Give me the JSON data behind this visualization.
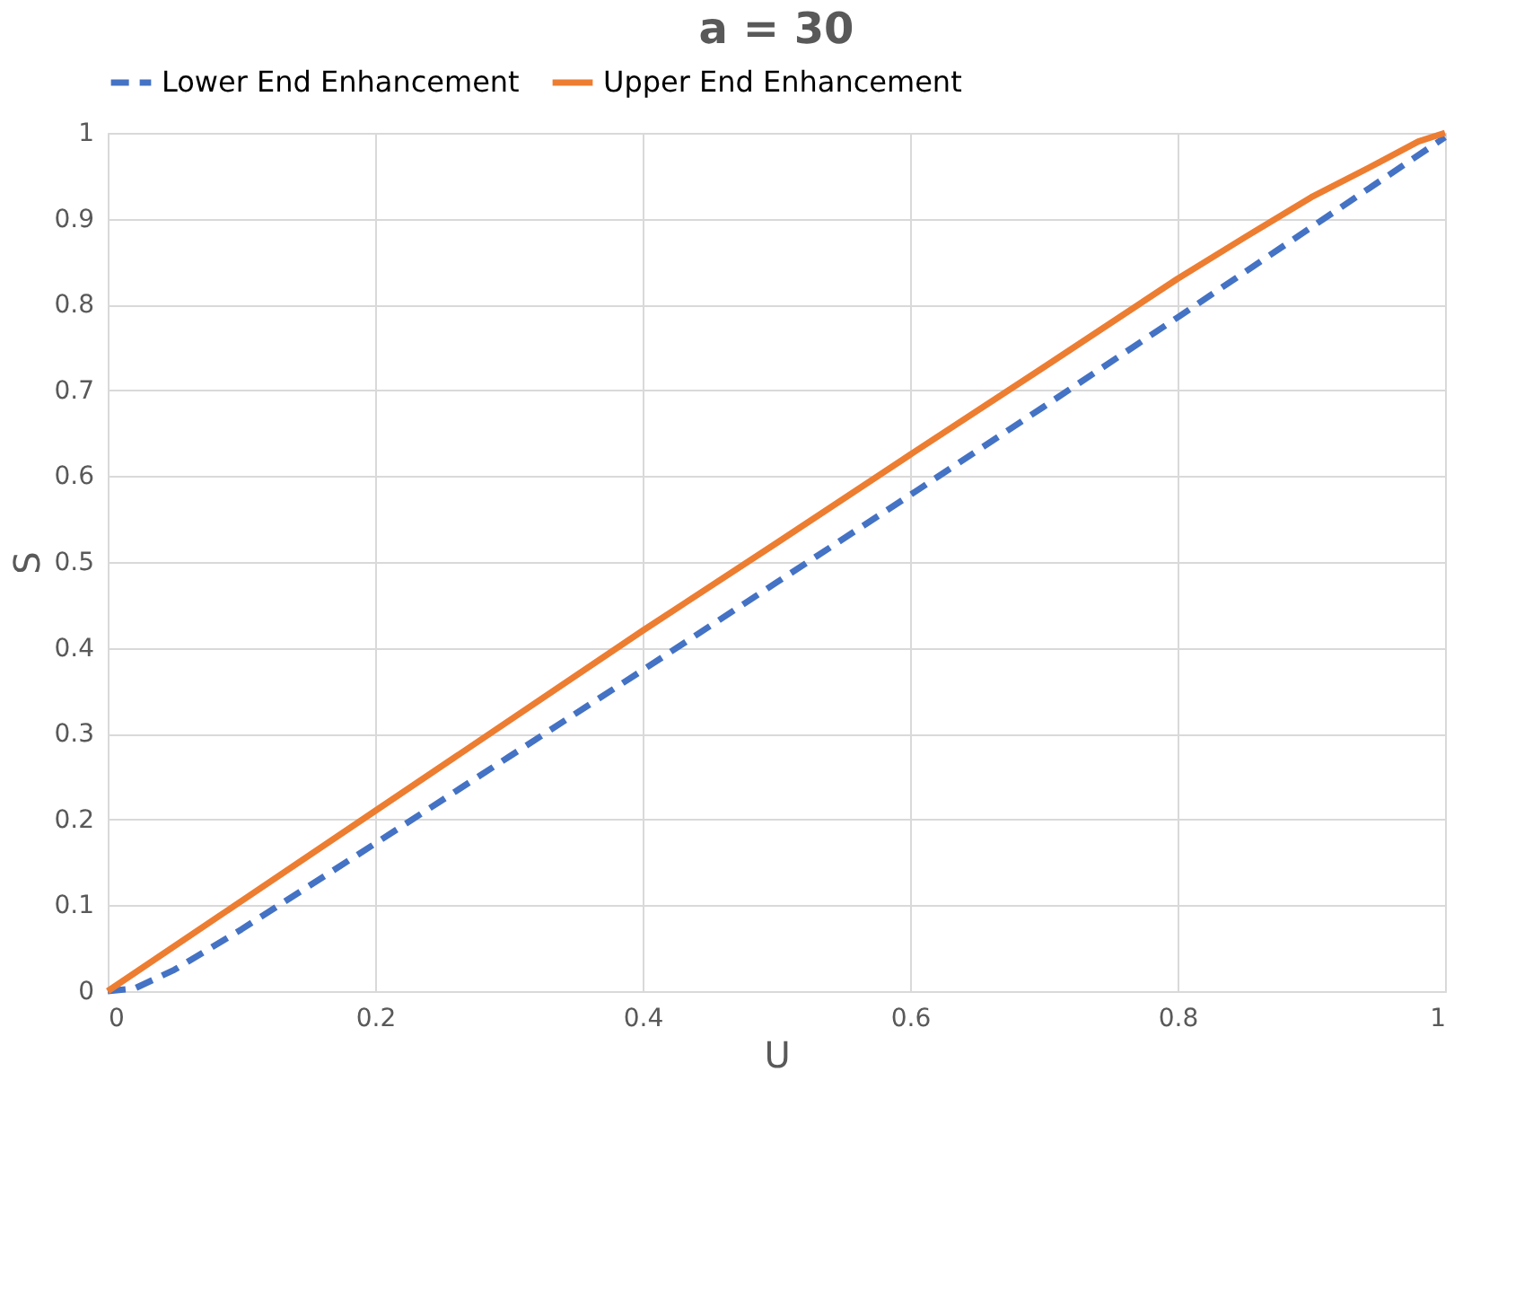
{
  "chart_data": {
    "type": "line",
    "title": "a = 30",
    "xlabel": "U",
    "ylabel": "S",
    "xlim": [
      0,
      1
    ],
    "xticks": [
      0,
      0.2,
      0.4,
      0.6,
      0.8,
      1
    ],
    "ylim": [
      0,
      1
    ],
    "yticks": [
      0,
      0.1,
      0.2,
      0.3,
      0.4,
      0.5,
      0.6,
      0.7,
      0.8,
      0.9,
      1
    ],
    "grid": true,
    "legend": "top",
    "series": [
      {
        "name": "Lower End Enhancement",
        "color": "#4472c4",
        "line_style": "dashed",
        "x": [
          0,
          0.02,
          0.05,
          0.1,
          0.15,
          0.2,
          0.3,
          0.4,
          0.5,
          0.6,
          0.7,
          0.8,
          0.9,
          1
        ],
        "values": [
          0,
          0.003,
          0.025,
          0.072,
          0.122,
          0.172,
          0.273,
          0.374,
          0.476,
          0.578,
          0.681,
          0.785,
          0.89,
          0.995
        ]
      },
      {
        "name": "Upper End Enhancement",
        "color": "#ed7d31",
        "line_style": "solid",
        "x": [
          0,
          0.1,
          0.2,
          0.3,
          0.4,
          0.5,
          0.6,
          0.7,
          0.8,
          0.85,
          0.9,
          0.95,
          0.98,
          1
        ],
        "values": [
          0,
          0.105,
          0.21,
          0.315,
          0.42,
          0.522,
          0.625,
          0.727,
          0.83,
          0.878,
          0.925,
          0.965,
          0.99,
          1
        ]
      }
    ]
  }
}
